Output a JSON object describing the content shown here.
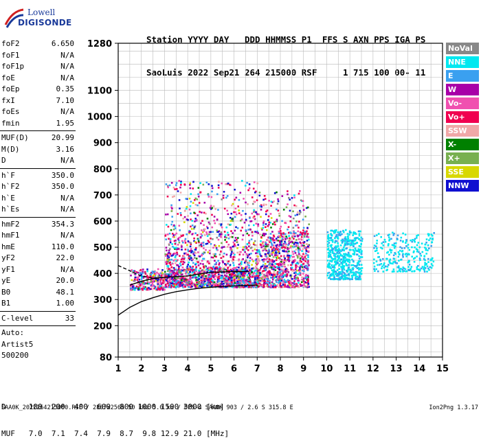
{
  "logo": {
    "line1": "Lowell",
    "line2": "DIGISONDE"
  },
  "header": {
    "row1": "Station YYYY DAY   DDD HHMMSS P1  FFS S AXN PPS IGA PS",
    "row2": "SaoLuis 2022 Sep21 264 215000 RSF     1 715 100 00- 11"
  },
  "params": {
    "group1": [
      {
        "k": "foF2",
        "v": "6.650"
      },
      {
        "k": "foF1",
        "v": "N/A"
      },
      {
        "k": "foF1p",
        "v": "N/A"
      },
      {
        "k": "foE",
        "v": "N/A"
      },
      {
        "k": "foEp",
        "v": "0.35"
      },
      {
        "k": "fxI",
        "v": "7.10"
      },
      {
        "k": "foEs",
        "v": "N/A"
      },
      {
        "k": "fmin",
        "v": "1.95"
      }
    ],
    "group2": [
      {
        "k": "MUF(D)",
        "v": "20.99"
      },
      {
        "k": "M(D)",
        "v": "3.16"
      },
      {
        "k": "D",
        "v": "N/A"
      }
    ],
    "group3": [
      {
        "k": "h`F",
        "v": "350.0"
      },
      {
        "k": "h`F2",
        "v": "350.0"
      },
      {
        "k": "h`E",
        "v": "N/A"
      },
      {
        "k": "h`Es",
        "v": "N/A"
      }
    ],
    "group4": [
      {
        "k": "hmF2",
        "v": "354.3"
      },
      {
        "k": "hmF1",
        "v": "N/A"
      },
      {
        "k": "hmE",
        "v": "110.0"
      },
      {
        "k": "yF2",
        "v": "22.0"
      },
      {
        "k": "yF1",
        "v": "N/A"
      },
      {
        "k": "yE",
        "v": "20.0"
      },
      {
        "k": "B0",
        "v": "48.1"
      },
      {
        "k": "B1",
        "v": "1.00"
      }
    ],
    "group5": [
      {
        "k": "C-level",
        "v": "33"
      }
    ],
    "auto": [
      "Auto:",
      "Artist5",
      "500200"
    ]
  },
  "legend": [
    {
      "label": "NoVal",
      "color": "#888888"
    },
    {
      "label": "NNE",
      "color": "#00e8f0"
    },
    {
      "label": "E",
      "color": "#3aa0f0"
    },
    {
      "label": "W",
      "color": "#a800a8"
    },
    {
      "label": "Vo-",
      "color": "#f050b0"
    },
    {
      "label": "Vo+",
      "color": "#f00050"
    },
    {
      "label": "SSW",
      "color": "#f0a8a8"
    },
    {
      "label": "X-",
      "color": "#008000"
    },
    {
      "label": "X+",
      "color": "#78b050"
    },
    {
      "label": "SSE",
      "color": "#d8d800"
    },
    {
      "label": "NNW",
      "color": "#1010d0"
    }
  ],
  "footer": {
    "row1": "D     100  200  400  600  800 1000 1500 3000 [km]",
    "row2": "MUF   7.0  7.1  7.4  7.9  8.7  9.8 12.9 21.0 [MHz]",
    "row3": "SAA0K_2022264215000.RSF / 280fx256h 50 kHz 5.0 km / DPS-4 SAA0K 903 / 2.6 S 315.8 E",
    "version": "Ion2Png 1.3.17"
  },
  "chart_data": {
    "type": "scatter",
    "xlim": [
      1,
      15
    ],
    "ylim": [
      80,
      1280
    ],
    "xticks": [
      1,
      2,
      3,
      4,
      5,
      6,
      7,
      8,
      9,
      10,
      11,
      12,
      13,
      14,
      15
    ],
    "yticks": [
      80,
      200,
      300,
      400,
      500,
      600,
      700,
      800,
      900,
      1000,
      1100,
      1280
    ],
    "grid": true,
    "legend_position": "right",
    "trace_clusters": [
      {
        "x": [
          1.5,
          3.0
        ],
        "y": [
          340,
          420
        ],
        "n": 260
      },
      {
        "x": [
          3.0,
          7.2
        ],
        "y": [
          350,
          420
        ],
        "n": 1100
      },
      {
        "x": [
          3.0,
          7.2
        ],
        "y": [
          420,
          560
        ],
        "n": 500
      },
      {
        "x": [
          3.0,
          7.2
        ],
        "y": [
          560,
          760
        ],
        "n": 280
      },
      {
        "x": [
          7.2,
          9.2
        ],
        "y": [
          350,
          560
        ],
        "n": 800
      },
      {
        "x": [
          7.2,
          9.2
        ],
        "y": [
          560,
          720
        ],
        "n": 110
      },
      {
        "x": [
          10.0,
          11.5
        ],
        "y": [
          380,
          570
        ],
        "n": 520
      },
      {
        "x": [
          12.0,
          14.6
        ],
        "y": [
          410,
          560
        ],
        "n": 260
      }
    ],
    "curves": [
      {
        "name": "profile",
        "style": "solid",
        "points": [
          [
            1,
            240
          ],
          [
            1.5,
            270
          ],
          [
            2,
            292
          ],
          [
            2.5,
            307
          ],
          [
            3,
            320
          ],
          [
            3.5,
            330
          ],
          [
            4,
            337
          ],
          [
            4.5,
            343
          ],
          [
            5,
            347
          ],
          [
            5.5,
            350
          ],
          [
            6,
            352
          ],
          [
            6.5,
            354
          ],
          [
            7,
            355
          ]
        ]
      },
      {
        "name": "model",
        "style": "solid",
        "points": [
          [
            1.5,
            355
          ],
          [
            2,
            370
          ],
          [
            2.5,
            380
          ],
          [
            3,
            385
          ],
          [
            4,
            390
          ],
          [
            4.5,
            398
          ],
          [
            5,
            404
          ],
          [
            6,
            407
          ],
          [
            6.65,
            407
          ]
        ]
      },
      {
        "name": "model-ext",
        "style": "dashed",
        "points": [
          [
            1,
            430
          ],
          [
            1.5,
            410
          ],
          [
            2,
            390
          ],
          [
            2.5,
            382
          ],
          [
            3,
            385
          ]
        ]
      }
    ]
  }
}
